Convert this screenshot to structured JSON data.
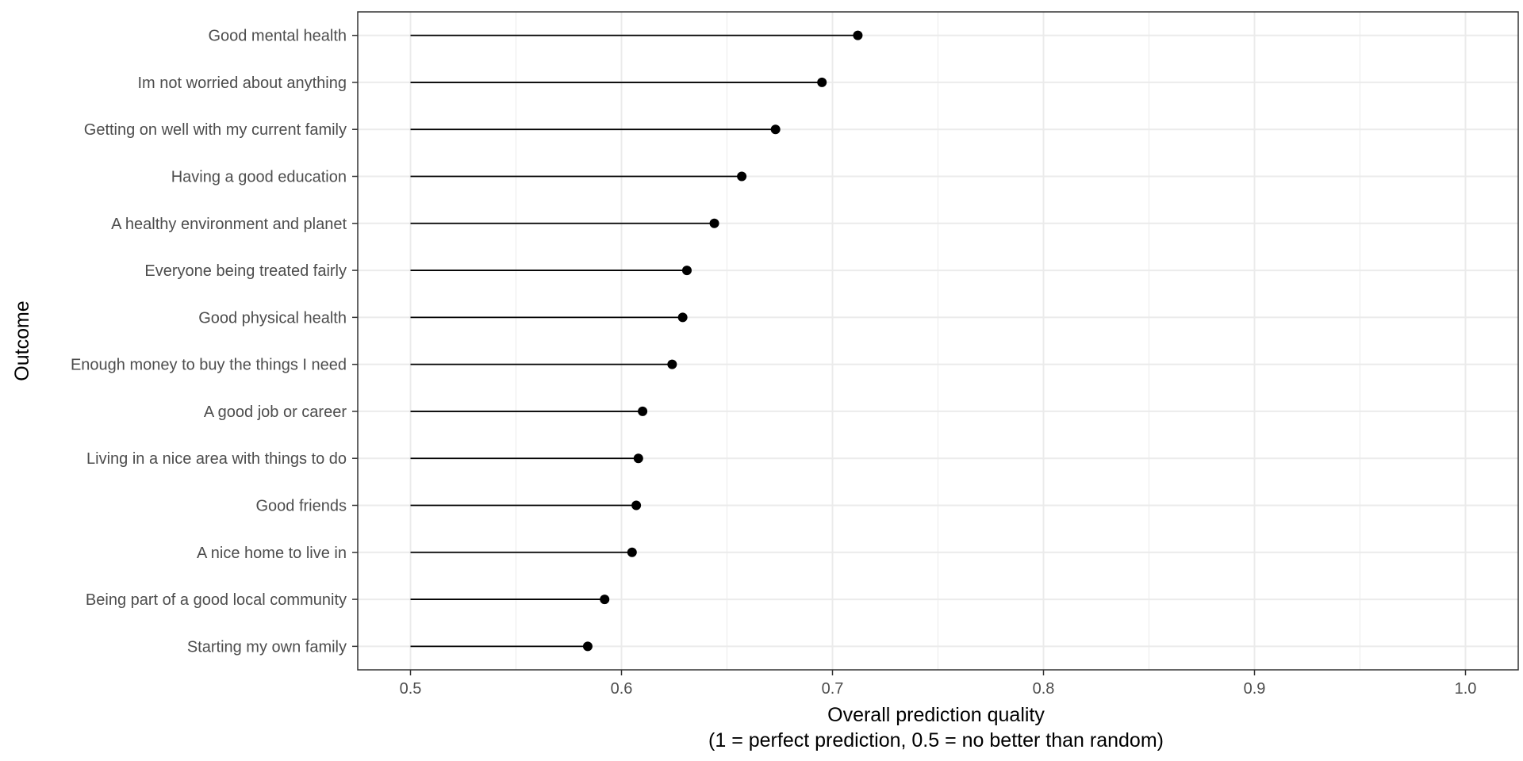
{
  "chart_data": {
    "type": "lollipop",
    "title": "",
    "xlabel_line1": "Overall prediction quality",
    "xlabel_line2": "(1 = perfect prediction, 0.5 = no better than random)",
    "ylabel": "Outcome",
    "xlim": [
      0.475,
      1.025
    ],
    "baseline": 0.5,
    "xticks": [
      0.5,
      0.6,
      0.7,
      0.8,
      0.9,
      1.0
    ],
    "xtick_labels": [
      "0.5",
      "0.6",
      "0.7",
      "0.8",
      "0.9",
      "1.0"
    ],
    "grid": true,
    "categories": [
      "Good mental health",
      "Im not worried about anything",
      "Getting on well with my current family",
      "Having a good education",
      "A healthy environment and planet",
      "Everyone being treated fairly",
      "Good physical health",
      "Enough money to buy the things I need",
      "A good job or career",
      "Living in a nice area with things to do",
      "Good friends",
      "A nice home to live in",
      "Being part of a good local community",
      "Starting my own family"
    ],
    "values": [
      0.712,
      0.695,
      0.673,
      0.657,
      0.644,
      0.631,
      0.629,
      0.624,
      0.61,
      0.608,
      0.607,
      0.605,
      0.592,
      0.584
    ],
    "colors": {
      "mark": "#000000",
      "grid": "#ebebeb",
      "panel_border": "#333333",
      "tick_text": "#4d4d4d"
    }
  }
}
